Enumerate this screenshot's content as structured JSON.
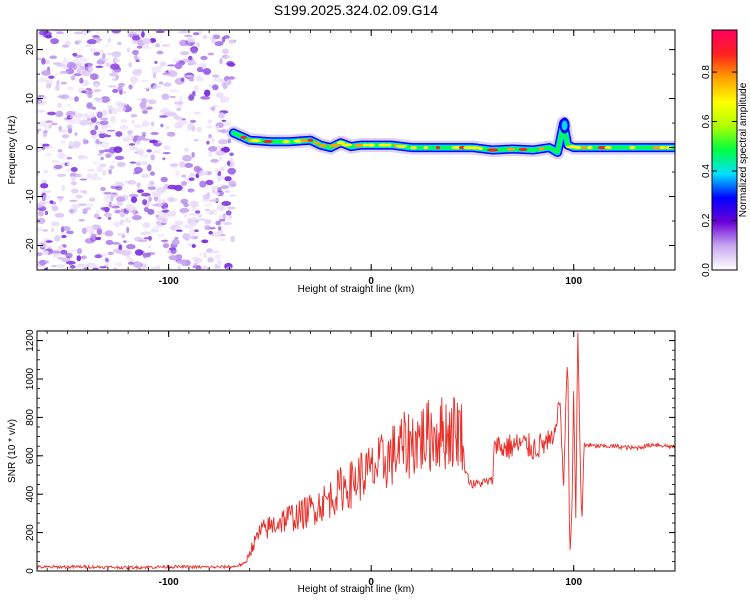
{
  "title": "S199.2025.324.02.09.G14",
  "colors": {
    "snr_line": "#e8302a",
    "spectrogram_noise": "#8a2be2",
    "axis": "#000000"
  },
  "colormap": [
    "#ffffff",
    "#c8a8f0",
    "#6a00d8",
    "#0000ff",
    "#00e0ff",
    "#00ff40",
    "#b0ff00",
    "#ffff00",
    "#ffa000",
    "#ff2020",
    "#ff0060"
  ],
  "chart_data": [
    {
      "type": "heatmap",
      "title": "S199.2025.324.02.09.G14",
      "xlabel": "Height of straight line (km)",
      "ylabel": "Frequency (Hz)",
      "xlim": [
        -165,
        150
      ],
      "ylim": [
        -25,
        24
      ],
      "xticks": [
        -100,
        0,
        100
      ],
      "xtick_labels": [
        "-100",
        "0",
        "100"
      ],
      "yticks": [
        -20,
        -10,
        0,
        10,
        20
      ],
      "ytick_labels": [
        "-20",
        "-10",
        "0",
        "10",
        "20"
      ],
      "colorbar": {
        "label": "Normalized spectral amplitude",
        "range": [
          0,
          0.97
        ],
        "ticks": [
          0.0,
          0.2,
          0.4,
          0.6,
          0.8
        ],
        "tick_labels": [
          "0.0",
          "0.2",
          "0.4",
          "0.6",
          "0.8"
        ]
      },
      "noise_region_x": [
        -165,
        -68
      ],
      "trace": {
        "x": [
          -68,
          -60,
          -50,
          -40,
          -30,
          -25,
          -20,
          -15,
          -10,
          -5,
          0,
          10,
          20,
          30,
          40,
          50,
          60,
          70,
          80,
          88,
          92,
          95,
          97,
          100,
          110,
          120,
          130,
          140,
          150
        ],
        "freq": [
          3,
          1.5,
          1.2,
          1.2,
          1.5,
          0.5,
          0,
          1,
          0.2,
          0.5,
          0.5,
          0.5,
          0,
          0,
          0,
          0,
          -0.5,
          -0.3,
          -0.5,
          0,
          -1,
          5,
          0.5,
          0,
          0,
          0,
          0,
          0,
          0
        ]
      }
    },
    {
      "type": "line",
      "xlabel": "Height of straight line (km)",
      "ylabel": "SNR (10 * v/v)",
      "xlim": [
        -165,
        150
      ],
      "ylim": [
        0,
        1250
      ],
      "xticks": [
        -100,
        0,
        100
      ],
      "xtick_labels": [
        "-100",
        "0",
        "100"
      ],
      "yticks": [
        0,
        200,
        400,
        600,
        800,
        1000,
        1200
      ],
      "ytick_labels": [
        "0",
        "200",
        "400",
        "600",
        "800",
        "1000",
        "1200"
      ],
      "series": [
        {
          "x": [
            -165,
            -140,
            -120,
            -100,
            -80,
            -68,
            -62,
            -60,
            -55,
            -50,
            -45,
            -40,
            -35,
            -30,
            -25,
            -20,
            -15,
            -10,
            -5,
            0,
            5,
            10,
            15,
            20,
            25,
            30,
            35,
            40,
            43,
            45,
            46,
            48,
            50,
            55,
            60,
            61,
            63,
            65,
            70,
            75,
            80,
            85,
            90,
            93,
            95,
            97,
            98,
            99,
            100,
            101,
            102,
            103,
            104,
            105,
            106,
            110,
            120,
            130,
            140,
            150
          ],
          "values": [
            20,
            22,
            18,
            22,
            20,
            22,
            40,
            100,
            200,
            230,
            260,
            280,
            290,
            320,
            350,
            380,
            430,
            450,
            500,
            520,
            560,
            600,
            640,
            670,
            690,
            710,
            720,
            730,
            740,
            720,
            550,
            480,
            450,
            460,
            470,
            700,
            650,
            640,
            650,
            660,
            640,
            660,
            670,
            900,
            450,
            1150,
            80,
            250,
            950,
            300,
            1250,
            700,
            200,
            640,
            660,
            650,
            650,
            640,
            660,
            645
          ]
        }
      ]
    }
  ]
}
